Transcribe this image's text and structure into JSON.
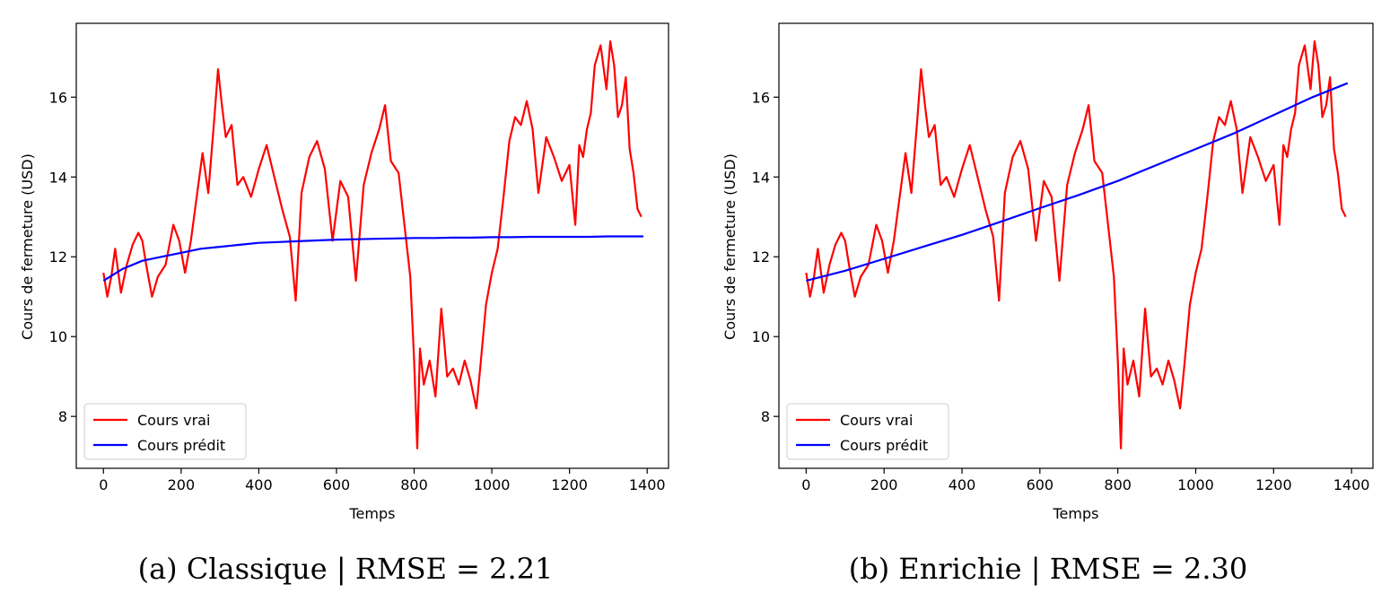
{
  "colors": {
    "true_series": "#ff0000",
    "predicted_series": "#0000ff",
    "axes": "#000000",
    "legend_border": "#cccccc"
  },
  "chart_data": [
    {
      "type": "line",
      "caption": "(a) Classique | RMSE = 2.21",
      "xlabel": "Temps",
      "ylabel": "Cours de fermeture (USD)",
      "xlim": [
        -70,
        1455
      ],
      "ylim": [
        6.7,
        17.85
      ],
      "xticks": [
        0,
        200,
        400,
        600,
        800,
        1000,
        1200,
        1400
      ],
      "yticks": [
        8,
        10,
        12,
        14,
        16
      ],
      "grid": false,
      "legend_position": "lower-left",
      "series": [
        {
          "name": "Cours vrai",
          "color": "#ff0000",
          "x": [
            0,
            10,
            20,
            30,
            45,
            60,
            75,
            90,
            100,
            110,
            125,
            140,
            160,
            180,
            195,
            210,
            225,
            240,
            255,
            270,
            285,
            295,
            305,
            315,
            330,
            345,
            360,
            380,
            400,
            420,
            440,
            460,
            480,
            495,
            510,
            530,
            550,
            570,
            590,
            610,
            630,
            650,
            670,
            690,
            710,
            725,
            740,
            760,
            775,
            790,
            800,
            808,
            815,
            825,
            840,
            855,
            870,
            885,
            900,
            915,
            930,
            945,
            960,
            970,
            985,
            1000,
            1015,
            1030,
            1045,
            1060,
            1075,
            1090,
            1105,
            1120,
            1140,
            1160,
            1180,
            1200,
            1215,
            1225,
            1235,
            1245,
            1255,
            1265,
            1280,
            1295,
            1305,
            1315,
            1325,
            1335,
            1345,
            1355,
            1365,
            1375,
            1385
          ],
          "y": [
            11.6,
            11.0,
            11.5,
            12.2,
            11.1,
            11.8,
            12.3,
            12.6,
            12.4,
            11.8,
            11.0,
            11.5,
            11.8,
            12.8,
            12.4,
            11.6,
            12.4,
            13.5,
            14.6,
            13.6,
            15.4,
            16.7,
            15.8,
            15.0,
            15.3,
            13.8,
            14.0,
            13.5,
            14.2,
            14.8,
            14.0,
            13.2,
            12.5,
            10.9,
            13.6,
            14.5,
            14.9,
            14.2,
            12.4,
            13.9,
            13.5,
            11.4,
            13.8,
            14.6,
            15.2,
            15.8,
            14.4,
            14.1,
            12.8,
            11.5,
            9.4,
            7.2,
            9.7,
            8.8,
            9.4,
            8.5,
            10.7,
            9.0,
            9.2,
            8.8,
            9.4,
            8.9,
            8.2,
            9.2,
            10.8,
            11.6,
            12.2,
            13.5,
            14.9,
            15.5,
            15.3,
            15.9,
            15.2,
            13.6,
            15.0,
            14.5,
            13.9,
            14.3,
            12.8,
            14.8,
            14.5,
            15.2,
            15.6,
            16.8,
            17.3,
            16.2,
            17.4,
            16.8,
            15.5,
            15.8,
            16.5,
            14.7,
            14.1,
            13.2,
            13.0
          ]
        },
        {
          "name": "Cours prédit",
          "color": "#0000ff",
          "x": [
            0,
            50,
            100,
            150,
            200,
            250,
            300,
            350,
            400,
            450,
            500,
            550,
            600,
            650,
            700,
            750,
            800,
            850,
            900,
            950,
            1000,
            1050,
            1100,
            1150,
            1200,
            1250,
            1300,
            1350,
            1390
          ],
          "y": [
            11.4,
            11.7,
            11.9,
            12.0,
            12.1,
            12.2,
            12.25,
            12.3,
            12.35,
            12.37,
            12.39,
            12.41,
            12.43,
            12.44,
            12.45,
            12.46,
            12.47,
            12.47,
            12.48,
            12.48,
            12.49,
            12.49,
            12.5,
            12.5,
            12.5,
            12.5,
            12.51,
            12.51,
            12.51
          ]
        }
      ]
    },
    {
      "type": "line",
      "caption": "(b) Enrichie | RMSE = 2.30",
      "xlabel": "Temps",
      "ylabel": "Cours de fermeture (USD)",
      "xlim": [
        -70,
        1455
      ],
      "ylim": [
        6.7,
        17.85
      ],
      "xticks": [
        0,
        200,
        400,
        600,
        800,
        1000,
        1200,
        1400
      ],
      "yticks": [
        8,
        10,
        12,
        14,
        16
      ],
      "grid": false,
      "legend_position": "lower-left",
      "series": [
        {
          "name": "Cours vrai",
          "color": "#ff0000",
          "x": [
            0,
            10,
            20,
            30,
            45,
            60,
            75,
            90,
            100,
            110,
            125,
            140,
            160,
            180,
            195,
            210,
            225,
            240,
            255,
            270,
            285,
            295,
            305,
            315,
            330,
            345,
            360,
            380,
            400,
            420,
            440,
            460,
            480,
            495,
            510,
            530,
            550,
            570,
            590,
            610,
            630,
            650,
            670,
            690,
            710,
            725,
            740,
            760,
            775,
            790,
            800,
            808,
            815,
            825,
            840,
            855,
            870,
            885,
            900,
            915,
            930,
            945,
            960,
            970,
            985,
            1000,
            1015,
            1030,
            1045,
            1060,
            1075,
            1090,
            1105,
            1120,
            1140,
            1160,
            1180,
            1200,
            1215,
            1225,
            1235,
            1245,
            1255,
            1265,
            1280,
            1295,
            1305,
            1315,
            1325,
            1335,
            1345,
            1355,
            1365,
            1375,
            1385
          ],
          "y": [
            11.6,
            11.0,
            11.5,
            12.2,
            11.1,
            11.8,
            12.3,
            12.6,
            12.4,
            11.8,
            11.0,
            11.5,
            11.8,
            12.8,
            12.4,
            11.6,
            12.4,
            13.5,
            14.6,
            13.6,
            15.4,
            16.7,
            15.8,
            15.0,
            15.3,
            13.8,
            14.0,
            13.5,
            14.2,
            14.8,
            14.0,
            13.2,
            12.5,
            10.9,
            13.6,
            14.5,
            14.9,
            14.2,
            12.4,
            13.9,
            13.5,
            11.4,
            13.8,
            14.6,
            15.2,
            15.8,
            14.4,
            14.1,
            12.8,
            11.5,
            9.4,
            7.2,
            9.7,
            8.8,
            9.4,
            8.5,
            10.7,
            9.0,
            9.2,
            8.8,
            9.4,
            8.9,
            8.2,
            9.2,
            10.8,
            11.6,
            12.2,
            13.5,
            14.9,
            15.5,
            15.3,
            15.9,
            15.2,
            13.6,
            15.0,
            14.5,
            13.9,
            14.3,
            12.8,
            14.8,
            14.5,
            15.2,
            15.6,
            16.8,
            17.3,
            16.2,
            17.4,
            16.8,
            15.5,
            15.8,
            16.5,
            14.7,
            14.1,
            13.2,
            13.0
          ]
        },
        {
          "name": "Cours prédit",
          "color": "#0000ff",
          "x": [
            0,
            100,
            200,
            300,
            400,
            500,
            600,
            700,
            800,
            900,
            1000,
            1100,
            1200,
            1300,
            1390
          ],
          "y": [
            11.4,
            11.65,
            11.95,
            12.25,
            12.55,
            12.88,
            13.22,
            13.55,
            13.9,
            14.3,
            14.7,
            15.1,
            15.55,
            16.0,
            16.35
          ]
        }
      ]
    }
  ]
}
